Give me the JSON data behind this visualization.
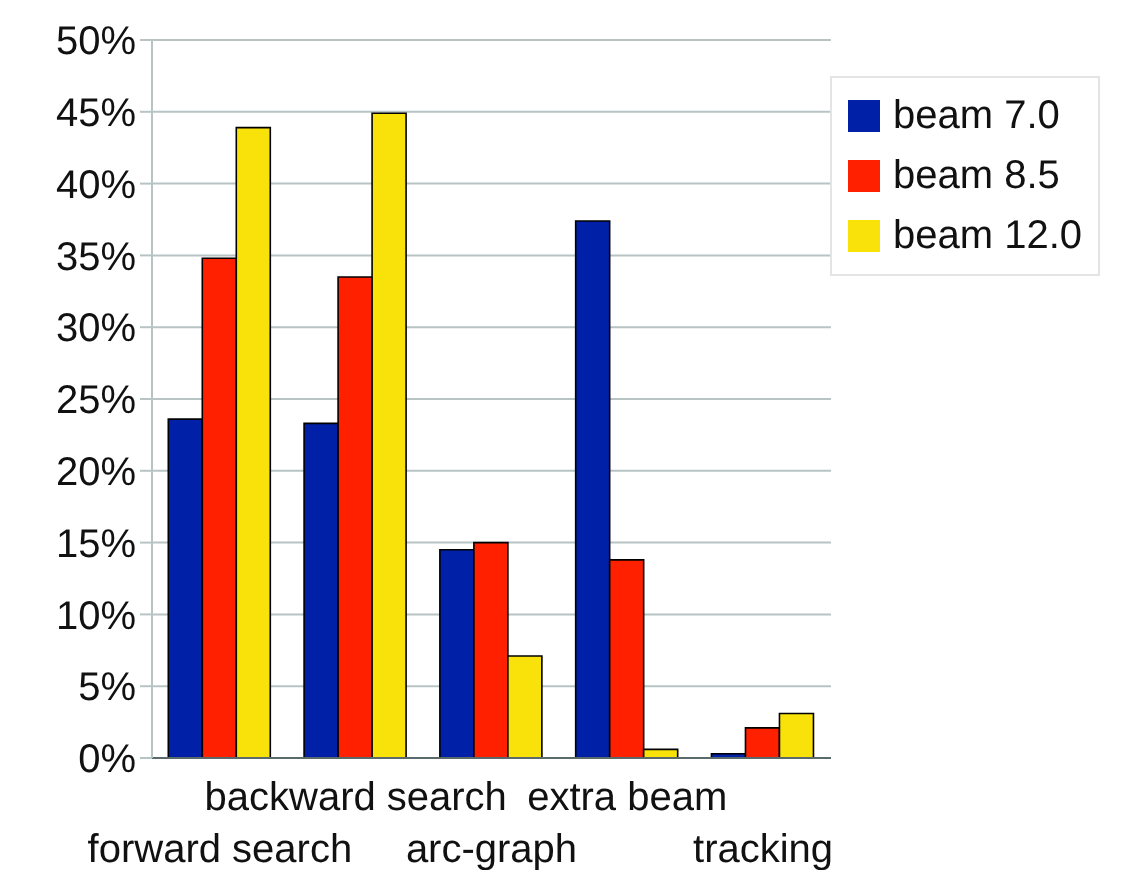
{
  "chart_data": {
    "type": "bar",
    "categories": [
      "forward search",
      "backward search",
      "arc-graph",
      "extra beam",
      "tracking"
    ],
    "series": [
      {
        "name": "beam 7.0",
        "color": "#0020a8",
        "values": [
          23.6,
          23.3,
          14.5,
          37.4,
          0.3
        ]
      },
      {
        "name": "beam 8.5",
        "color": "#ff2000",
        "values": [
          34.8,
          33.5,
          15.0,
          13.8,
          2.1
        ]
      },
      {
        "name": "beam 12.0",
        "color": "#f9e20a",
        "values": [
          43.9,
          44.9,
          7.1,
          0.6,
          3.1
        ]
      }
    ],
    "ylim": [
      0,
      50
    ],
    "yticks": [
      {
        "value": 0,
        "label": "0%"
      },
      {
        "value": 5,
        "label": "5%"
      },
      {
        "value": 10,
        "label": "10%"
      },
      {
        "value": 15,
        "label": "15%"
      },
      {
        "value": 20,
        "label": "20%"
      },
      {
        "value": 25,
        "label": "25%"
      },
      {
        "value": 30,
        "label": "30%"
      },
      {
        "value": 35,
        "label": "35%"
      },
      {
        "value": 40,
        "label": "40%"
      },
      {
        "value": 45,
        "label": "45%"
      },
      {
        "value": 50,
        "label": "50%"
      }
    ],
    "grid": "y",
    "legend": "top right"
  }
}
